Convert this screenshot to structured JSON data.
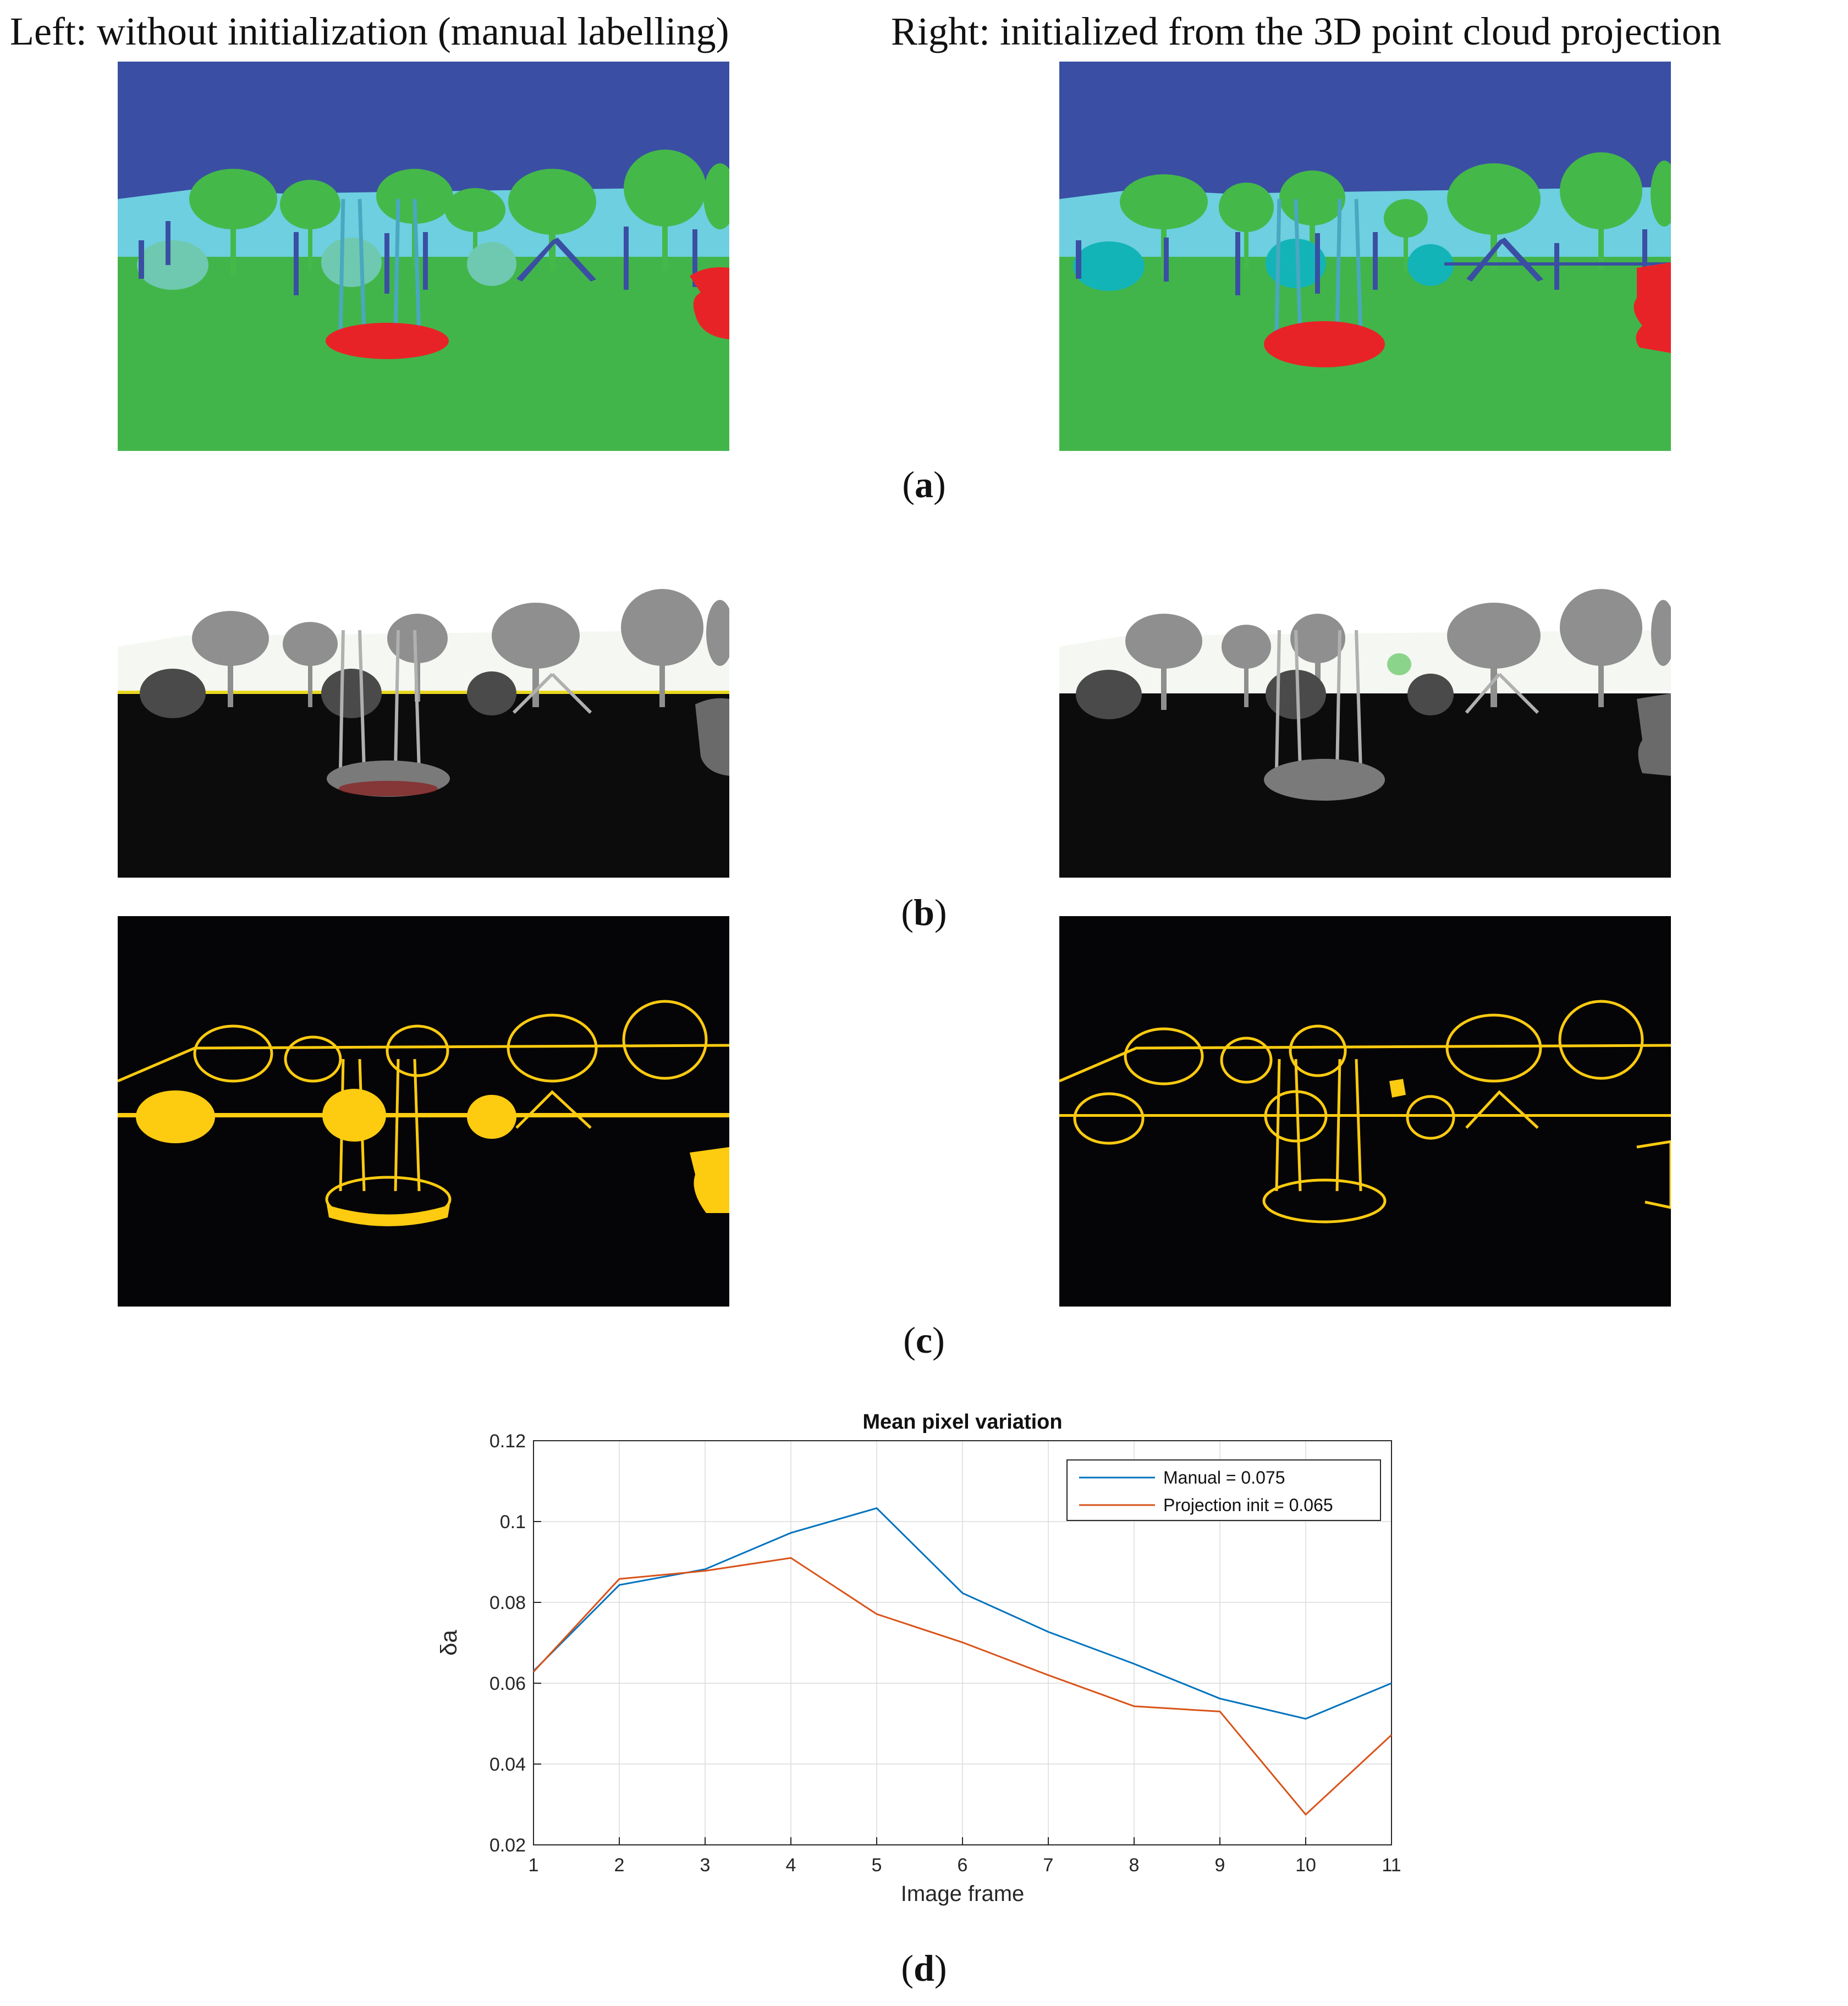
{
  "header": {
    "left_title": "Left: without initialization (manual labelling)",
    "right_title": "Right: initialized from the 3D point cloud projection"
  },
  "subfigure_labels": {
    "a": "a",
    "b": "b",
    "c": "c",
    "d": "d"
  },
  "colors": {
    "sky": "#3a4fa3",
    "ground": "#42b54a",
    "trees": "#45b84a",
    "fence": "#6dcfe0",
    "poles": "#3a4fa3",
    "bushes_left": "#6ec9b0",
    "bushes_right": "#13b4b8",
    "swing": "#e82328",
    "edge_yellow": "#fdcb10",
    "manual_series": "#0072bd",
    "projection_series": "#d95319"
  },
  "chart_data": {
    "type": "line",
    "title": "Mean pixel variation",
    "xlabel": "Image frame",
    "ylabel": "δa",
    "x": [
      1,
      2,
      3,
      4,
      5,
      6,
      7,
      8,
      9,
      10,
      11
    ],
    "xlim": [
      1,
      11
    ],
    "ylim": [
      0.02,
      0.12
    ],
    "yticks": [
      0.02,
      0.04,
      0.06,
      0.08,
      0.1,
      0.12
    ],
    "ytick_labels": [
      "0.02",
      "0.04",
      "0.06",
      "0.08",
      "0.1",
      "0.12"
    ],
    "xtick_labels": [
      "1",
      "2",
      "3",
      "4",
      "5",
      "6",
      "7",
      "8",
      "9",
      "10",
      "11"
    ],
    "grid": true,
    "legend_position": "top-right",
    "series": [
      {
        "name": "Manual = 0.075",
        "color": "#0072bd",
        "values": [
          0.063,
          0.0843,
          0.0882,
          0.0972,
          0.1033,
          0.0823,
          0.0727,
          0.0648,
          0.0562,
          0.0512,
          0.06
        ]
      },
      {
        "name": "Projection init = 0.065",
        "color": "#d95319",
        "values": [
          0.0628,
          0.0858,
          0.0878,
          0.091,
          0.0771,
          0.0701,
          0.062,
          0.0543,
          0.053,
          0.0275,
          0.0472
        ]
      }
    ]
  }
}
